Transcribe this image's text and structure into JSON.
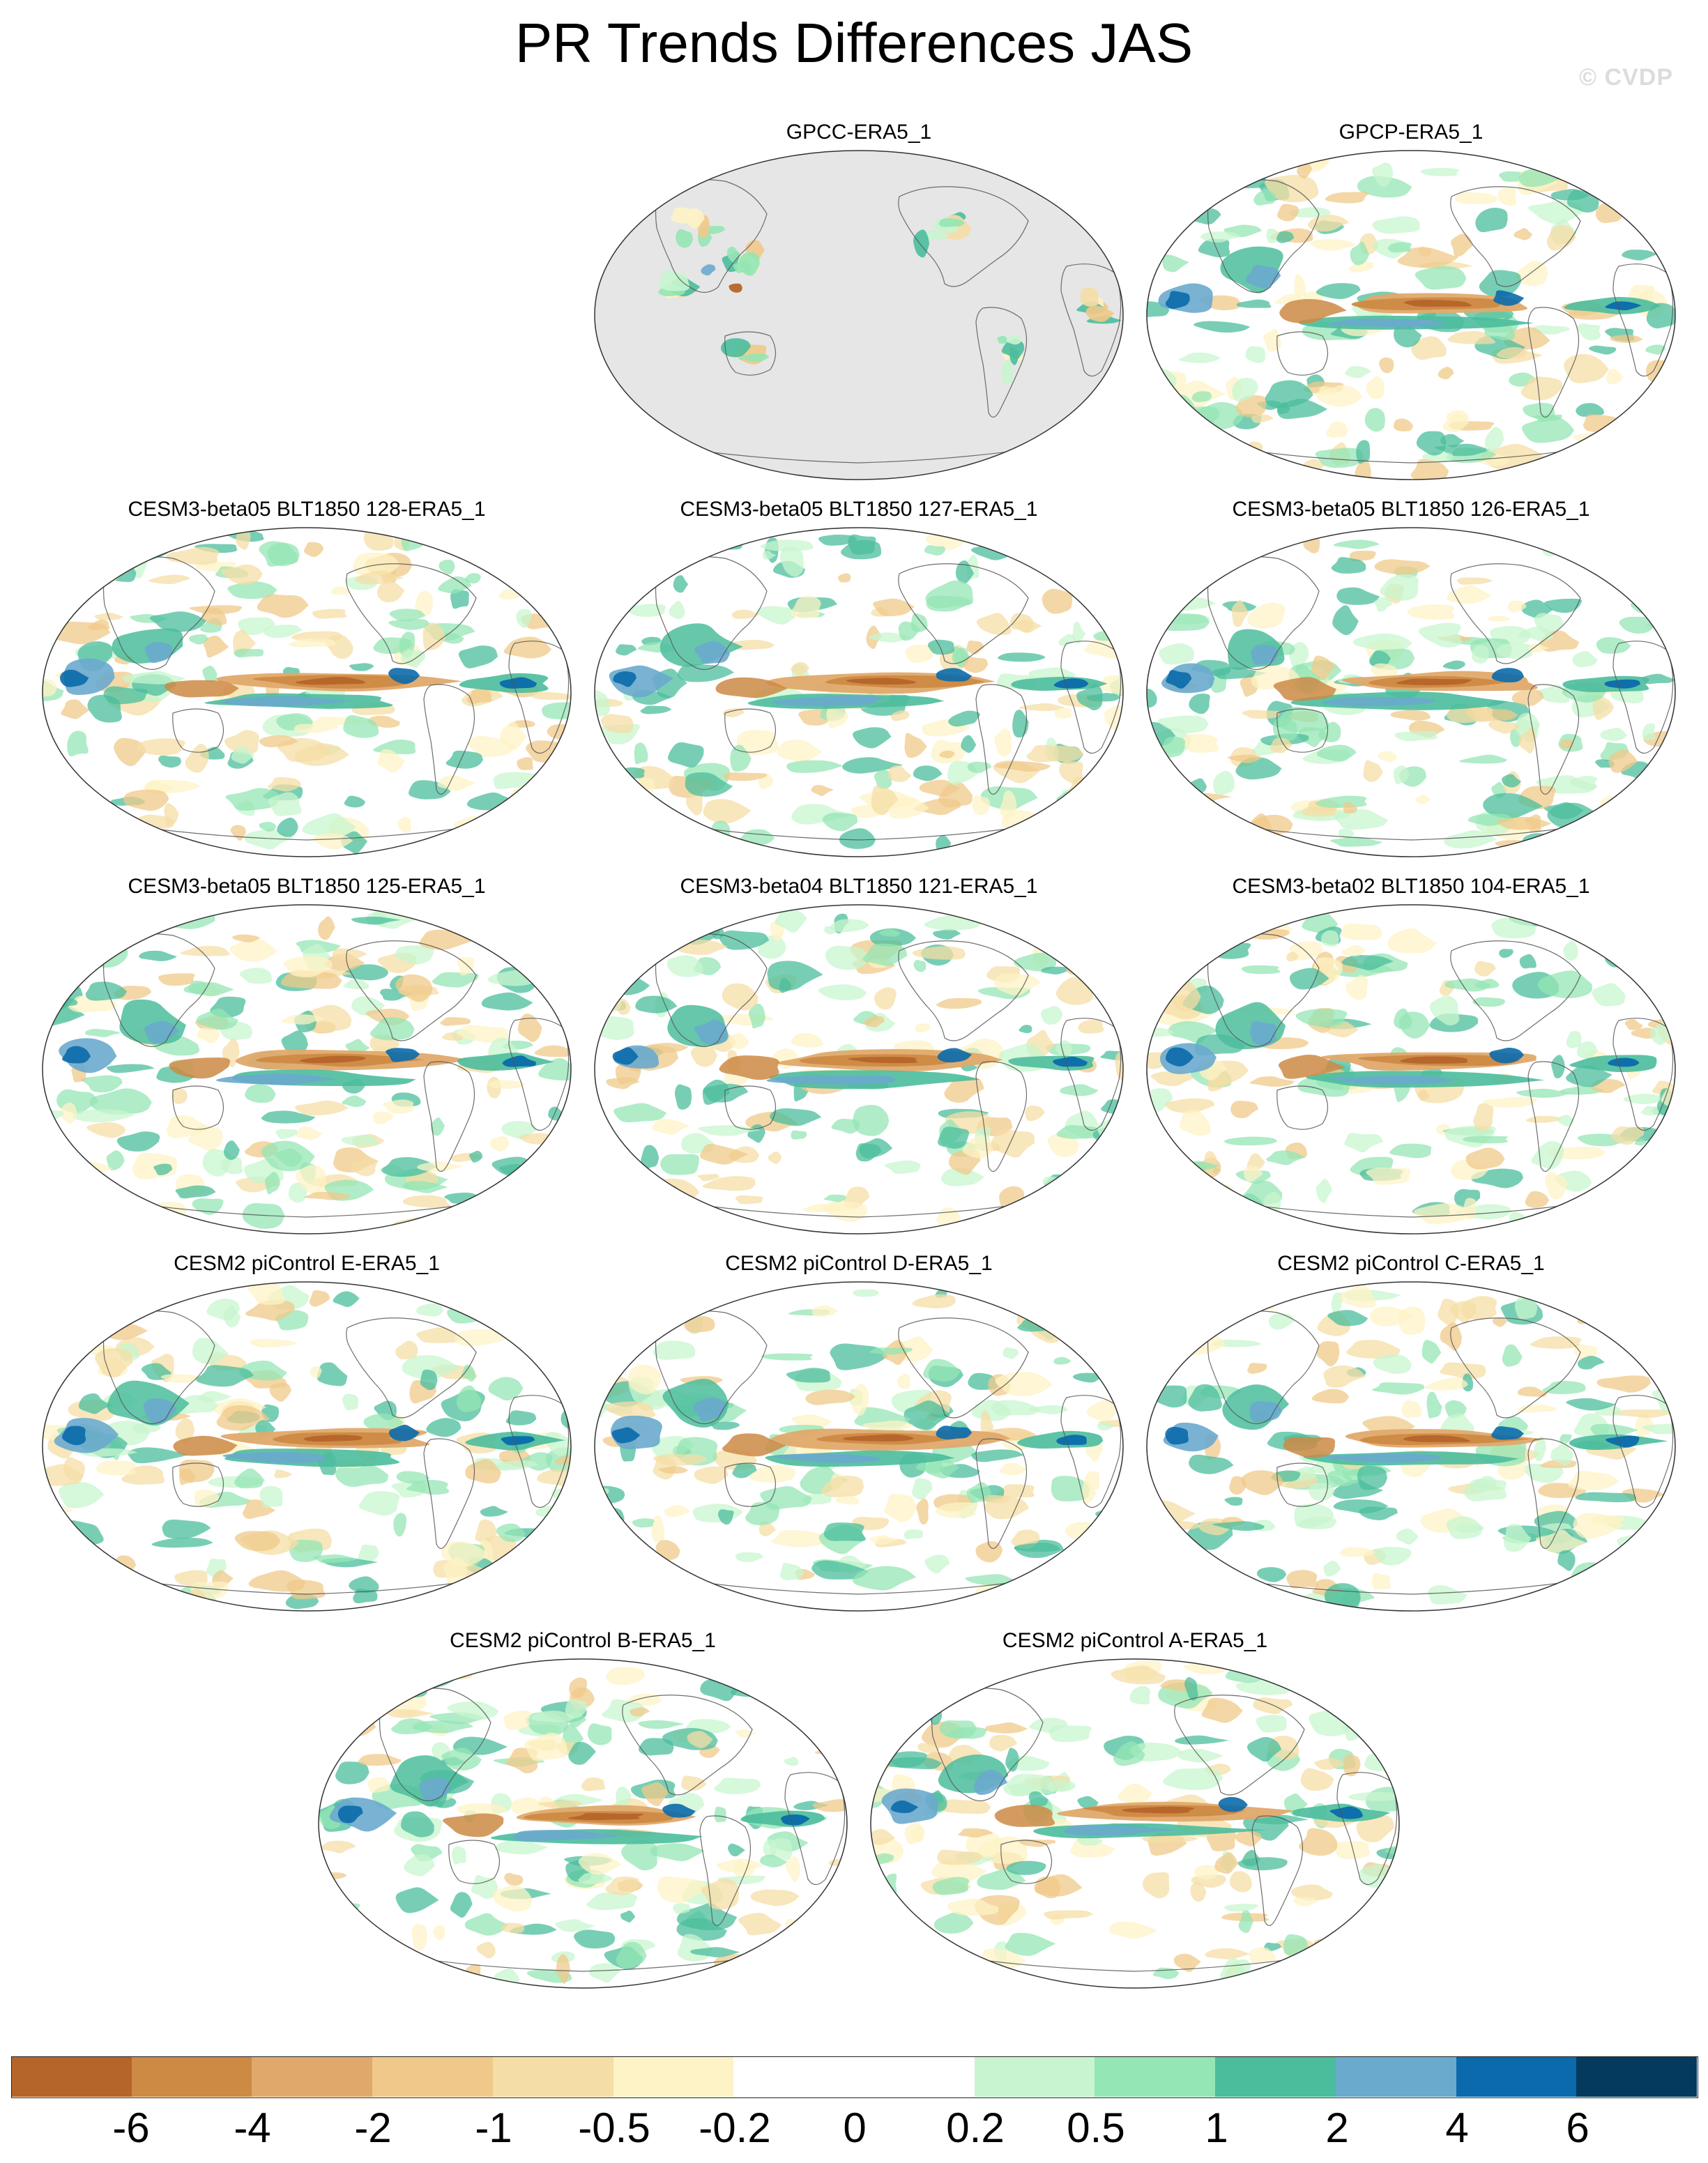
{
  "title": "PR Trends Differences JAS",
  "copyright": "© CVDP",
  "panels": [
    {
      "label": "GPCC-ERA5_1",
      "kind": "gpcc"
    },
    {
      "label": "GPCP-ERA5_1",
      "kind": "full"
    },
    {
      "label": "CESM3-beta05 BLT1850 128-ERA5_1",
      "kind": "full"
    },
    {
      "label": "CESM3-beta05 BLT1850 127-ERA5_1",
      "kind": "full"
    },
    {
      "label": "CESM3-beta05 BLT1850 126-ERA5_1",
      "kind": "full"
    },
    {
      "label": "CESM3-beta05 BLT1850 125-ERA5_1",
      "kind": "full"
    },
    {
      "label": "CESM3-beta04 BLT1850 121-ERA5_1",
      "kind": "full"
    },
    {
      "label": "CESM3-beta02 BLT1850 104-ERA5_1",
      "kind": "full"
    },
    {
      "label": "CESM2 piControl E-ERA5_1",
      "kind": "full"
    },
    {
      "label": "CESM2 piControl D-ERA5_1",
      "kind": "full"
    },
    {
      "label": "CESM2 piControl C-ERA5_1",
      "kind": "full"
    },
    {
      "label": "CESM2 piControl B-ERA5_1",
      "kind": "full"
    },
    {
      "label": "CESM2 piControl A-ERA5_1",
      "kind": "full"
    }
  ],
  "colorbar": {
    "colors": [
      "#b5652a",
      "#cd8a45",
      "#e0a96b",
      "#f0c98a",
      "#f5dda6",
      "#fdf3c6",
      "#ffffff",
      "#ffffff",
      "#c8f5cf",
      "#94e6b4",
      "#4bbd9c",
      "#6aaacd",
      "#0a6aab",
      "#033a5e"
    ],
    "labels": [
      "-6",
      "-4",
      "-2",
      "-1",
      "-0.5",
      "-0.2",
      "0",
      "0.2",
      "0.5",
      "1",
      "2",
      "4",
      "6"
    ]
  },
  "land_color": "#e6e6e6"
}
